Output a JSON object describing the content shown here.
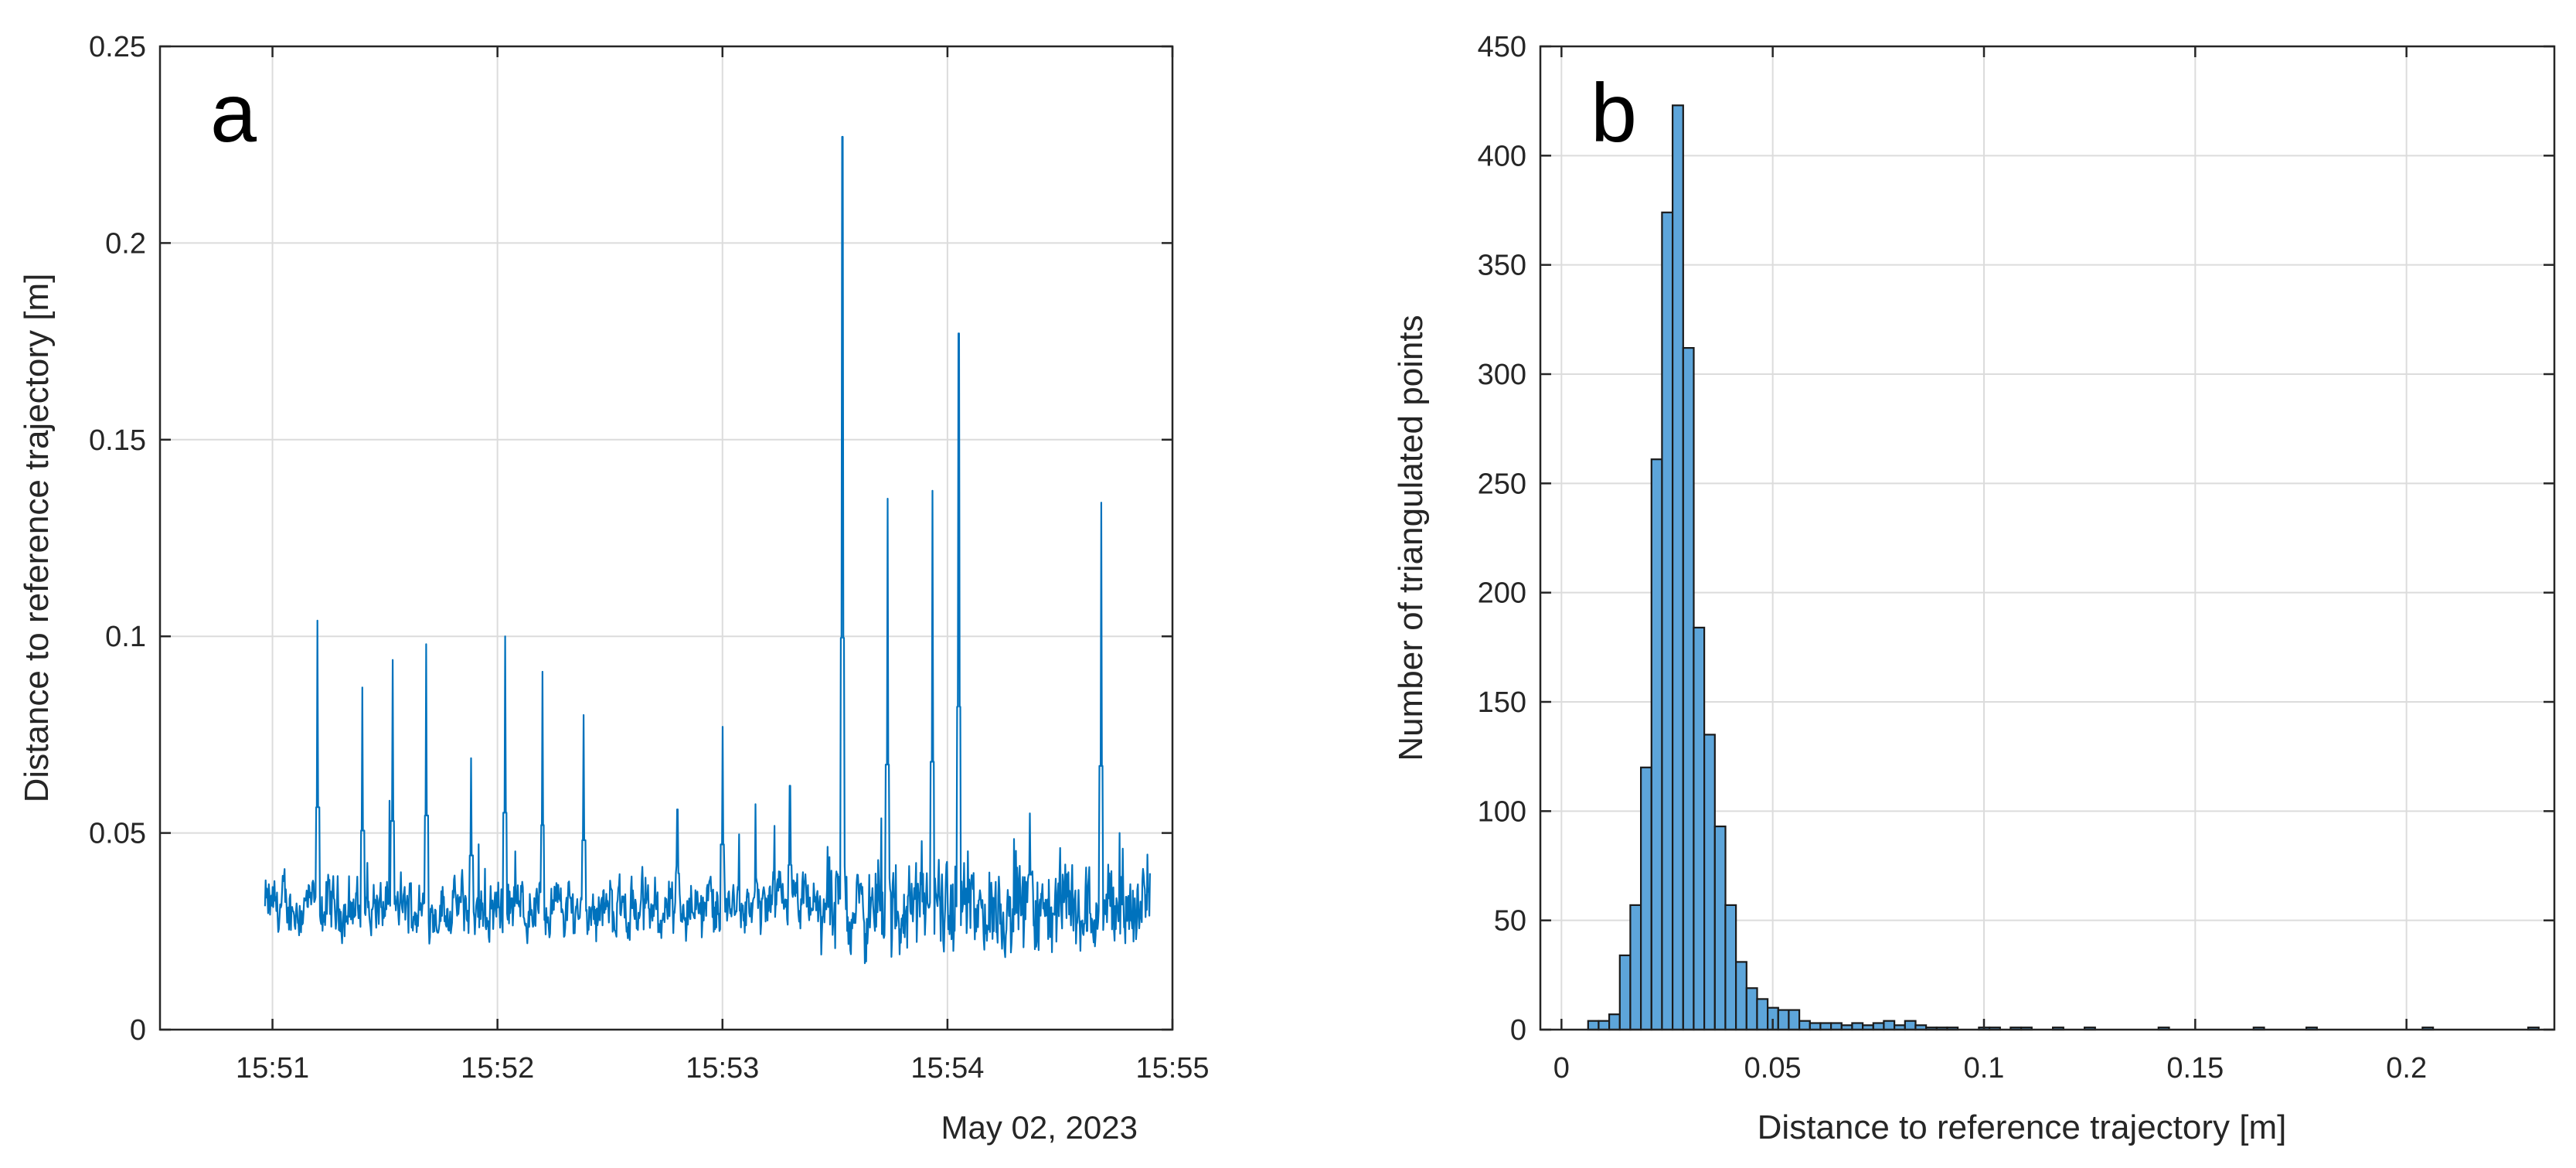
{
  "chart_data": [
    {
      "type": "line",
      "panel_label": "a",
      "ylabel": "Distance to reference trajectory [m]",
      "xlabel": "",
      "x_axis_secondary_label": "May 02, 2023",
      "xlim": [
        "15:50:30",
        "15:55:00"
      ],
      "ylim": [
        0,
        0.25
      ],
      "x_tick_labels": [
        "15:51",
        "15:52",
        "15:53",
        "15:54",
        "15:55"
      ],
      "y_tick_labels": [
        "0",
        "0.05",
        "0.1",
        "0.15",
        "0.2",
        "0.25"
      ],
      "y_ticks": [
        0,
        0.05,
        0.1,
        0.15,
        0.2,
        0.25
      ],
      "grid": true,
      "color": "#0072BD",
      "x_range_seconds": [
        "15:50:58",
        "15:54:54"
      ],
      "baseline_m": 0.031,
      "noise_m": 0.005,
      "spikes": [
        {
          "time": "15:51:12",
          "value": 0.104
        },
        {
          "time": "15:51:24",
          "value": 0.087
        },
        {
          "time": "15:51:32",
          "value": 0.094
        },
        {
          "time": "15:51:41",
          "value": 0.098
        },
        {
          "time": "15:51:53",
          "value": 0.069
        },
        {
          "time": "15:52:02",
          "value": 0.1
        },
        {
          "time": "15:52:12",
          "value": 0.091
        },
        {
          "time": "15:52:23",
          "value": 0.08
        },
        {
          "time": "15:52:48",
          "value": 0.056
        },
        {
          "time": "15:53:00",
          "value": 0.077
        },
        {
          "time": "15:53:18",
          "value": 0.062
        },
        {
          "time": "15:53:32",
          "value": 0.227
        },
        {
          "time": "15:53:44",
          "value": 0.135
        },
        {
          "time": "15:53:56",
          "value": 0.137
        },
        {
          "time": "15:54:03",
          "value": 0.177
        },
        {
          "time": "15:54:22",
          "value": 0.055
        },
        {
          "time": "15:54:41",
          "value": 0.134
        }
      ]
    },
    {
      "type": "bar",
      "panel_label": "b",
      "xlabel": "Distance to reference trajectory [m]",
      "ylabel": "Number of triangulated points",
      "xlim": [
        -0.005,
        0.235
      ],
      "ylim": [
        0,
        450
      ],
      "x_tick_labels": [
        "0",
        "0.05",
        "0.1",
        "0.15",
        "0.2"
      ],
      "x_ticks": [
        0,
        0.05,
        0.1,
        0.15,
        0.2
      ],
      "y_tick_labels": [
        "0",
        "50",
        "100",
        "150",
        "200",
        "250",
        "300",
        "350",
        "400",
        "450"
      ],
      "y_ticks": [
        0,
        50,
        100,
        150,
        200,
        250,
        300,
        350,
        400,
        450
      ],
      "grid": true,
      "bin_width": 0.0025,
      "bin_start": 0.0063,
      "face_color": "#5DA5DA",
      "edge_color": "#1a1a1a",
      "values": [
        4,
        4,
        7,
        34,
        57,
        120,
        261,
        374,
        423,
        312,
        184,
        135,
        93,
        57,
        31,
        19,
        14,
        10,
        9,
        9,
        4,
        3,
        3,
        3,
        2,
        3,
        2,
        3,
        4,
        2,
        4,
        2,
        1,
        1,
        1,
        0,
        0,
        1,
        1,
        0,
        1,
        1,
        0,
        0,
        1,
        0,
        0,
        1,
        0,
        0,
        0,
        0,
        0,
        0,
        1,
        0,
        0,
        0,
        0,
        0,
        0,
        0,
        0,
        1,
        0,
        0,
        0,
        0,
        1,
        0,
        0,
        0,
        0,
        0,
        0,
        0,
        0,
        0,
        0,
        1,
        0,
        0,
        0,
        0,
        0,
        0,
        0,
        0,
        0,
        1
      ]
    }
  ]
}
